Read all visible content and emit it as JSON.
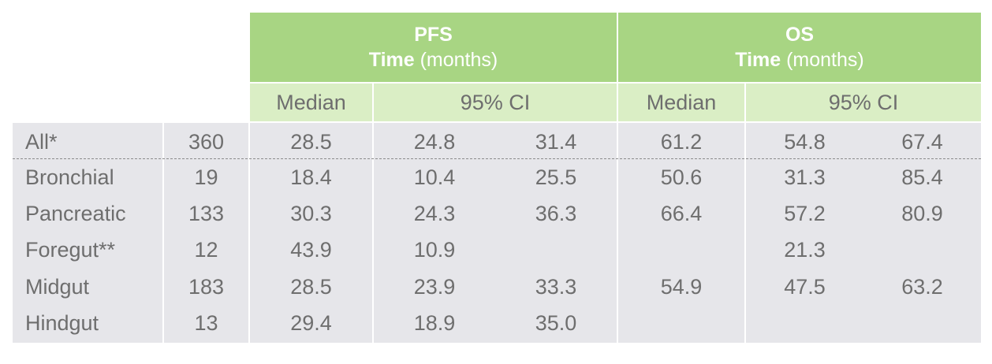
{
  "pfs_header": {
    "title": "PFS",
    "time_bold": "Time",
    "unit": " (months)"
  },
  "os_header": {
    "title": "OS",
    "time_bold": "Time",
    "unit": " (months)"
  },
  "sub_headers": {
    "pfs_median": "Median",
    "pfs_ci": "95% CI",
    "os_median": "Median",
    "os_ci": "95% CI"
  },
  "rows": [
    {
      "label": "All*",
      "n": "360",
      "pfs_median": "28.5",
      "pfs_ci_low": "24.8",
      "pfs_ci_high": "31.4",
      "os_median": "61.2",
      "os_ci_low": "54.8",
      "os_ci_high": "67.4"
    },
    {
      "label": "Bronchial",
      "n": "19",
      "pfs_median": "18.4",
      "pfs_ci_low": "10.4",
      "pfs_ci_high": "25.5",
      "os_median": "50.6",
      "os_ci_low": "31.3",
      "os_ci_high": "85.4"
    },
    {
      "label": "Pancreatic",
      "n": "133",
      "pfs_median": "30.3",
      "pfs_ci_low": "24.3",
      "pfs_ci_high": "36.3",
      "os_median": "66.4",
      "os_ci_low": "57.2",
      "os_ci_high": "80.9"
    },
    {
      "label": "Foregut**",
      "n": "12",
      "pfs_median": "43.9",
      "pfs_ci_low": "10.9",
      "pfs_ci_high": "",
      "os_median": "",
      "os_ci_low": "21.3",
      "os_ci_high": ""
    },
    {
      "label": "Midgut",
      "n": "183",
      "pfs_median": "28.5",
      "pfs_ci_low": "23.9",
      "pfs_ci_high": "33.3",
      "os_median": "54.9",
      "os_ci_low": "47.5",
      "os_ci_high": "63.2"
    },
    {
      "label": "Hindgut",
      "n": "13",
      "pfs_median": "29.4",
      "pfs_ci_low": "18.9",
      "pfs_ci_high": "35.0",
      "os_median": "",
      "os_ci_low": "",
      "os_ci_high": ""
    }
  ]
}
